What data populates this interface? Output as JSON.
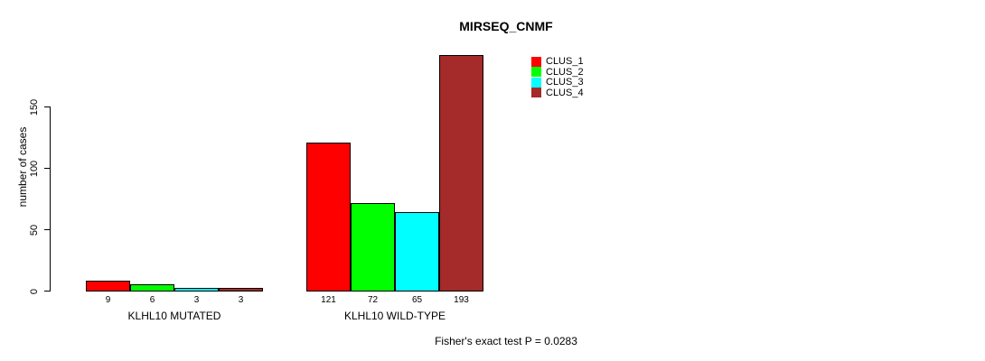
{
  "title": "MIRSEQ_CNMF",
  "annotation": "Fisher's exact test P = 0.0283",
  "chart_data": {
    "type": "bar",
    "title": "MIRSEQ_CNMF",
    "xlabel": "",
    "ylabel": "number of cases",
    "categories": [
      "KLHL10 MUTATED",
      "KLHL10 WILD-TYPE"
    ],
    "series": [
      {
        "name": "CLUS_1",
        "color": "#ff0000",
        "values": [
          9,
          121
        ]
      },
      {
        "name": "CLUS_2",
        "color": "#00ff00",
        "values": [
          6,
          72
        ]
      },
      {
        "name": "CLUS_3",
        "color": "#00ffff",
        "values": [
          3,
          65
        ]
      },
      {
        "name": "CLUS_4",
        "color": "#a52a2a",
        "values": [
          3,
          193
        ]
      }
    ],
    "yticks": [
      0,
      50,
      100,
      150
    ],
    "ylim": [
      0,
      195
    ],
    "grid": false,
    "legend_position": "top-right",
    "bar_value_labels": true,
    "annotation": "Fisher's exact test P = 0.0283"
  }
}
